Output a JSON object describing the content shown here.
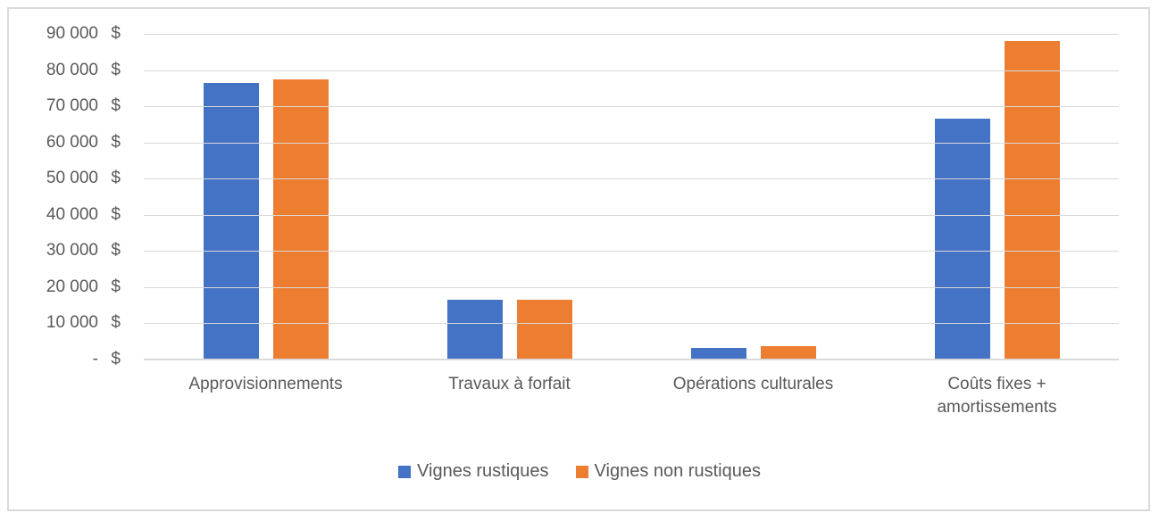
{
  "chart_data": {
    "type": "bar",
    "title": "",
    "xlabel": "",
    "ylabel": "",
    "categories": [
      "Approvisionnements",
      "Travaux à forfait",
      "Opérations culturales",
      "Coûts fixes +\namortissements"
    ],
    "series": [
      {
        "name": "Vignes rustiques",
        "color": "#4472C4",
        "values": [
          76400,
          16600,
          3100,
          66600
        ]
      },
      {
        "name": "Vignes non rustiques",
        "color": "#ED7D31",
        "values": [
          77400,
          16500,
          3600,
          88000
        ]
      }
    ],
    "ylim": [
      0,
      90000
    ],
    "y_tick_step": 10000,
    "y_ticks": [
      {
        "label": "90 000",
        "value": 90000
      },
      {
        "label": "80 000",
        "value": 80000
      },
      {
        "label": "70 000",
        "value": 70000
      },
      {
        "label": "60 000",
        "value": 60000
      },
      {
        "label": "50 000",
        "value": 50000
      },
      {
        "label": "40 000",
        "value": 40000
      },
      {
        "label": "30 000",
        "value": 30000
      },
      {
        "label": "20 000",
        "value": 20000
      },
      {
        "label": "10 000",
        "value": 10000
      },
      {
        "label": "-",
        "value": 0
      }
    ],
    "currency_suffix": "$",
    "grid": true,
    "legend_position": "bottom"
  },
  "styles": {
    "text_color": "#595959",
    "grid_color": "#D9D9D9",
    "axis_line_color": "#D9D9D9",
    "frame_border_color": "#D9D9D9",
    "background": "#FFFFFF",
    "series_blue": "#4472C4",
    "series_orange": "#ED7D31"
  }
}
